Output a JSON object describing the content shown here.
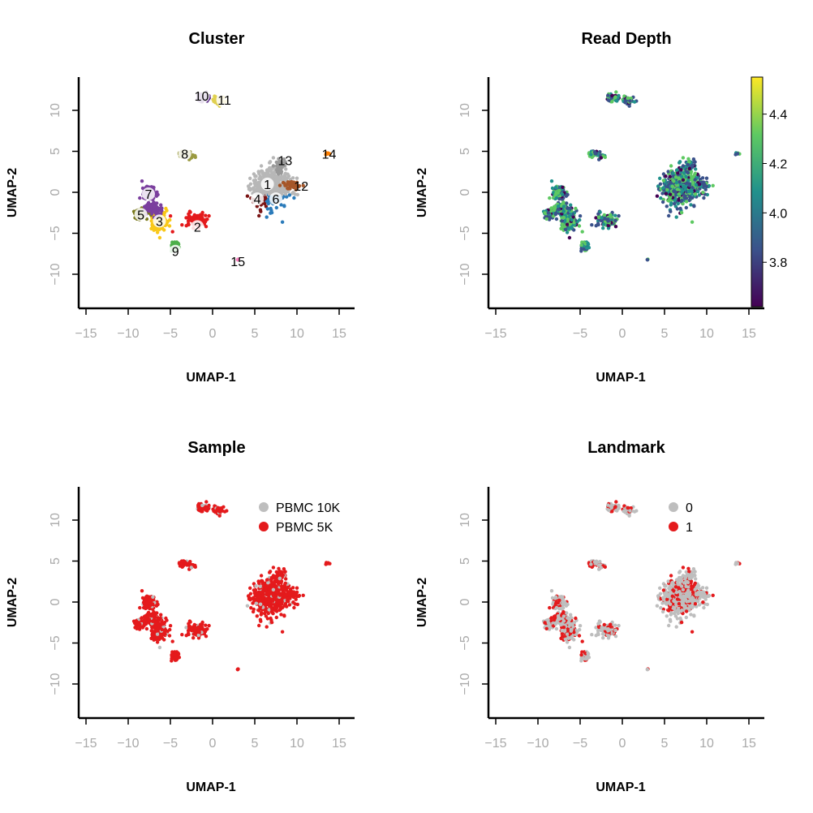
{
  "chart_data": [
    {
      "type": "scatter",
      "title": "Cluster",
      "xlabel": "UMAP-1",
      "ylabel": "UMAP-2",
      "xlim": [
        -17,
        17
      ],
      "ylim": [
        -14,
        14
      ],
      "x_ticks": [
        -15,
        -10,
        -5,
        0,
        5,
        10,
        15
      ],
      "y_ticks": [
        -10,
        -5,
        0,
        5,
        10
      ],
      "x_tick_labels": [
        "−15",
        "−10",
        "−5",
        "0",
        "5",
        "10",
        "15"
      ],
      "y_tick_labels": [
        "−10",
        "−5",
        "0",
        "5",
        "10"
      ],
      "color_by": "cluster",
      "groups": [
        {
          "label": "1",
          "x": 6.5,
          "y": 1.5,
          "color": "#b7b7b7"
        },
        {
          "label": "2",
          "x": -1.8,
          "y": -4.0,
          "color": "#e41a1c"
        },
        {
          "label": "3",
          "x": -6.2,
          "y": -3.5,
          "color": "#f9c818"
        },
        {
          "label": "4",
          "x": 5.5,
          "y": -0.8,
          "color": "#7a1414"
        },
        {
          "label": "5",
          "x": -8.5,
          "y": -2.7,
          "color": "#7a7a1e"
        },
        {
          "label": "6",
          "x": 7.5,
          "y": -1.0,
          "color": "#2b7bba"
        },
        {
          "label": "7",
          "x": -7.5,
          "y": -0.3,
          "color": "#7b3f9e"
        },
        {
          "label": "8",
          "x": -3.2,
          "y": 4.7,
          "color": "#9a9a40"
        },
        {
          "label": "9",
          "x": -4.5,
          "y": -7.0,
          "color": "#4daf4a"
        },
        {
          "label": "10",
          "x": -1.2,
          "y": 11.3,
          "color": "#5b2a86"
        },
        {
          "label": "11",
          "x": 1.2,
          "y": 11.0,
          "color": "#e0d050"
        },
        {
          "label": "12",
          "x": 9.5,
          "y": 0.8,
          "color": "#a65628"
        },
        {
          "label": "13",
          "x": 7.8,
          "y": 2.8,
          "color": "#999999"
        },
        {
          "label": "14",
          "x": 13.6,
          "y": 4.8,
          "color": "#ff7f00"
        },
        {
          "label": "15",
          "x": 3.0,
          "y": -8.2,
          "color": "#f781bf"
        }
      ],
      "point_labels": [
        {
          "text": "1",
          "x": 6.5,
          "y": 1.0
        },
        {
          "text": "2",
          "x": -1.8,
          "y": -4.2
        },
        {
          "text": "3",
          "x": -6.3,
          "y": -3.5
        },
        {
          "text": "4",
          "x": 5.3,
          "y": -0.8
        },
        {
          "text": "5",
          "x": -8.5,
          "y": -2.7
        },
        {
          "text": "6",
          "x": 7.5,
          "y": -0.8
        },
        {
          "text": "7",
          "x": -7.6,
          "y": -0.2
        },
        {
          "text": "8",
          "x": -3.3,
          "y": 4.7
        },
        {
          "text": "9",
          "x": -4.4,
          "y": -7.2
        },
        {
          "text": "10",
          "x": -1.3,
          "y": 11.8
        },
        {
          "text": "11",
          "x": 1.4,
          "y": 11.3
        },
        {
          "text": "12",
          "x": 10.5,
          "y": 0.8
        },
        {
          "text": "13",
          "x": 8.6,
          "y": 3.9
        },
        {
          "text": "14",
          "x": 13.8,
          "y": 4.7
        },
        {
          "text": "15",
          "x": 3.0,
          "y": -8.4
        }
      ]
    },
    {
      "type": "scatter",
      "title": "Read Depth",
      "xlabel": "UMAP-1",
      "ylabel": "UMAP-2",
      "xlim": [
        -17,
        17
      ],
      "ylim": [
        -14,
        14
      ],
      "x_ticks": [
        -15,
        -5,
        0,
        5,
        10,
        15
      ],
      "y_ticks": [
        -10,
        -5,
        0,
        5,
        10
      ],
      "x_tick_labels": [
        "−15",
        "−5",
        "0",
        "5",
        "10",
        "15"
      ],
      "y_tick_labels": [
        "−10",
        "−5",
        "0",
        "5",
        "10"
      ],
      "color_by": "read depth (continuous, viridis)",
      "colorbar": {
        "min": 3.62,
        "max": 4.55,
        "ticks": [
          3.8,
          4.0,
          4.2,
          4.4
        ],
        "tick_labels": [
          "3.8",
          "4.0",
          "4.2",
          "4.4"
        ],
        "colors": [
          "#440154",
          "#3b528b",
          "#21918c",
          "#5ec962",
          "#fde725"
        ]
      }
    },
    {
      "type": "scatter",
      "title": "Sample",
      "xlabel": "UMAP-1",
      "ylabel": "UMAP-2",
      "xlim": [
        -17,
        17
      ],
      "ylim": [
        -14,
        14
      ],
      "x_ticks": [
        -15,
        -10,
        -5,
        0,
        5,
        10,
        15
      ],
      "y_ticks": [
        -10,
        -5,
        0,
        5,
        10
      ],
      "x_tick_labels": [
        "−15",
        "−10",
        "−5",
        "0",
        "5",
        "10",
        "15"
      ],
      "y_tick_labels": [
        "−10",
        "−5",
        "0",
        "5",
        "10"
      ],
      "color_by": "sample",
      "legend": [
        {
          "label": "PBMC 10K",
          "color": "#bebebe"
        },
        {
          "label": "PBMC 5K",
          "color": "#e41a1c"
        }
      ],
      "legend_position": "top-right"
    },
    {
      "type": "scatter",
      "title": "Landmark",
      "xlabel": "UMAP-1",
      "ylabel": "UMAP-2",
      "xlim": [
        -17,
        17
      ],
      "ylim": [
        -14,
        14
      ],
      "x_ticks": [
        -15,
        -10,
        -5,
        0,
        5,
        10,
        15
      ],
      "y_ticks": [
        -10,
        -5,
        0,
        5,
        10
      ],
      "x_tick_labels": [
        "−15",
        "−10",
        "−5",
        "0",
        "5",
        "10",
        "15"
      ],
      "y_tick_labels": [
        "−10",
        "−5",
        "0",
        "5",
        "10"
      ],
      "color_by": "landmark",
      "legend": [
        {
          "label": "0",
          "color": "#bebebe"
        },
        {
          "label": "1",
          "color": "#e41a1c"
        }
      ],
      "legend_position": "top-right"
    }
  ]
}
